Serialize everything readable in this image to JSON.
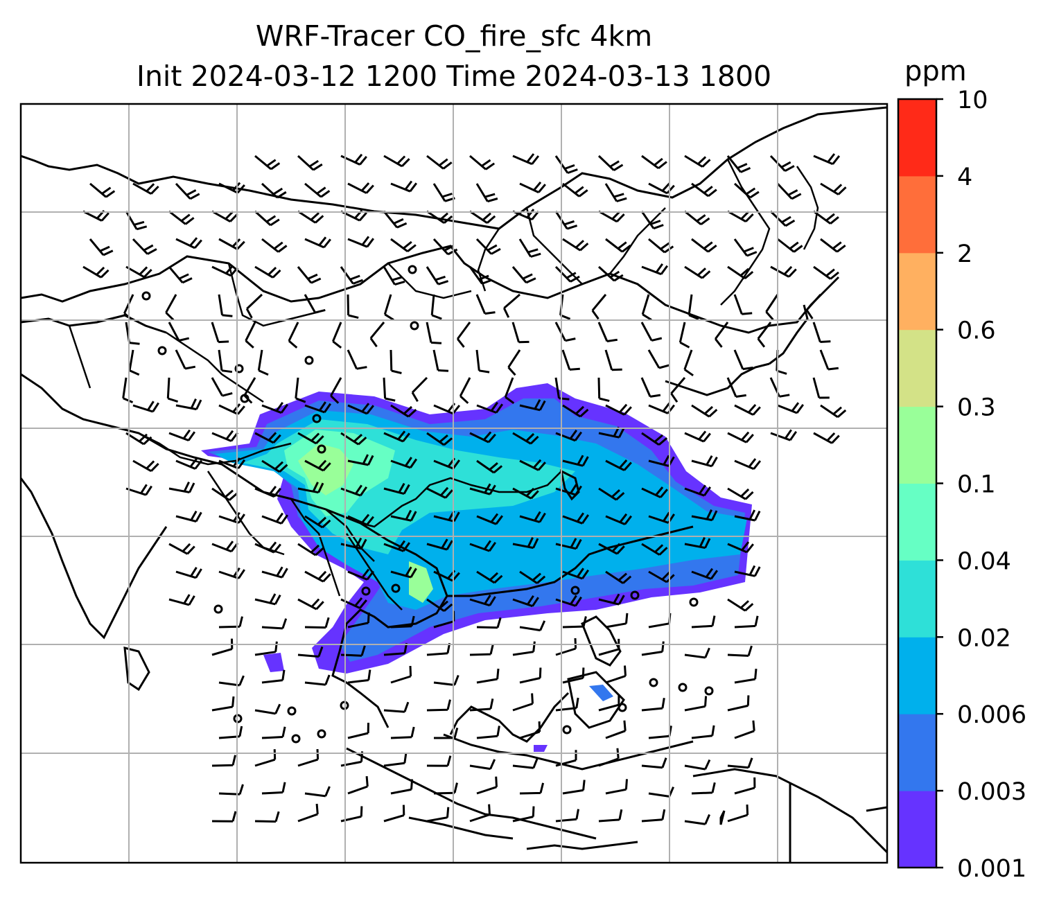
{
  "title": {
    "line1": "WRF-Tracer CO_fire_sfc 4km",
    "line2": "Init 2024-03-12 1200 Time 2024-03-13 1800"
  },
  "colorbar": {
    "unit": "ppm",
    "ticks": [
      "0.001",
      "0.003",
      "0.006",
      "0.02",
      "0.04",
      "0.1",
      "0.3",
      "0.6",
      "2",
      "4",
      "10"
    ],
    "colors": [
      "#6633ff",
      "#3377ee",
      "#00b0ec",
      "#2ee0d8",
      "#66ffc4",
      "#99ff99",
      "#d3e287",
      "#ffb060",
      "#ff6e3a",
      "#ff2a18"
    ]
  },
  "map": {
    "field": "CO_fire_sfc",
    "grid": true,
    "overlays": [
      "coastlines",
      "country-borders",
      "wind-barbs"
    ]
  }
}
